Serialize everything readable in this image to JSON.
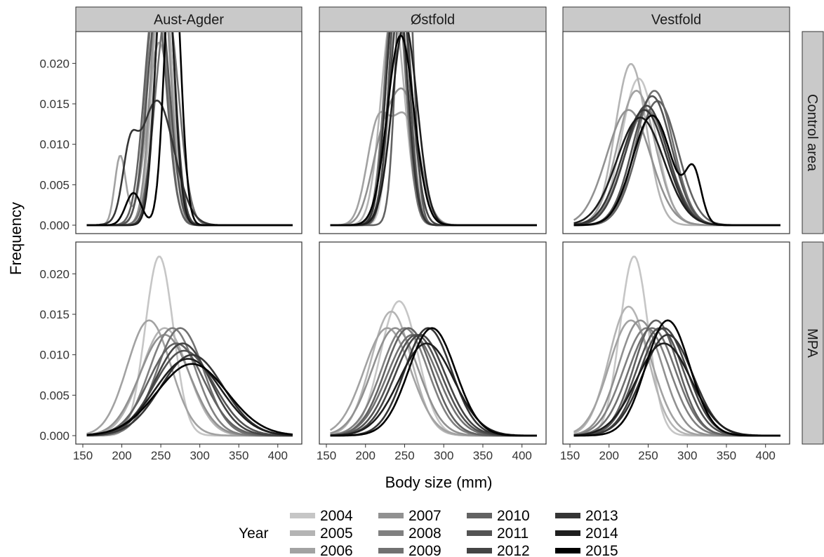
{
  "chart_data": {
    "type": "line",
    "xlabel": "Body size (mm)",
    "ylabel": "Frequency",
    "xlim": [
      150,
      420
    ],
    "ylim": [
      0,
      0.0235
    ],
    "x_ticks": [
      150,
      200,
      250,
      300,
      350,
      400
    ],
    "y_ticks": [
      0,
      0.005,
      0.01,
      0.015,
      0.02
    ],
    "y_tick_labels": [
      "0.000",
      "0.005",
      "0.010",
      "0.015",
      "0.020"
    ],
    "grid": false,
    "columns": [
      "Aust-Agder",
      "Østfold",
      "Vestfold"
    ],
    "rows": [
      "Control area",
      "MPA"
    ],
    "legend": {
      "title": "Year",
      "position": "bottom",
      "entries": [
        {
          "label": "2004",
          "color": "#c6c6c6"
        },
        {
          "label": "2005",
          "color": "#b4b4b4"
        },
        {
          "label": "2006",
          "color": "#a2a2a2"
        },
        {
          "label": "2007",
          "color": "#919191"
        },
        {
          "label": "2008",
          "color": "#808080"
        },
        {
          "label": "2009",
          "color": "#717171"
        },
        {
          "label": "2010",
          "color": "#626262"
        },
        {
          "label": "2011",
          "color": "#535353"
        },
        {
          "label": "2012",
          "color": "#444444"
        },
        {
          "label": "2013",
          "color": "#353535"
        },
        {
          "label": "2014",
          "color": "#1e1e1e"
        },
        {
          "label": "2015",
          "color": "#000000"
        }
      ]
    },
    "panels": [
      {
        "column": "Aust-Agder",
        "row": "Control area",
        "series": [
          {
            "name": "2004",
            "components": [
              [
                250,
                12,
                1.0
              ]
            ]
          },
          {
            "name": "2005",
            "components": [
              [
                252,
                12,
                1.0
              ]
            ]
          },
          {
            "name": "2006",
            "components": [
              [
                198,
                7,
                0.15
              ],
              [
                248,
                15,
                0.85
              ]
            ]
          },
          {
            "name": "2007",
            "components": [
              [
                250,
                12,
                1.0
              ]
            ]
          },
          {
            "name": "2008",
            "components": [
              [
                245,
                13,
                1.0
              ]
            ]
          },
          {
            "name": "2009",
            "components": [
              [
                258,
                15,
                1.0
              ]
            ]
          },
          {
            "name": "2010",
            "components": [
              [
                243,
                14,
                1.0
              ]
            ]
          },
          {
            "name": "2011",
            "components": [
              [
                247,
                14,
                1.0
              ]
            ]
          },
          {
            "name": "2012",
            "components": [
              [
                255,
                12,
                1.0
              ]
            ]
          },
          {
            "name": "2013",
            "components": [
              [
                210,
                9,
                0.15
              ],
              [
                245,
                22,
                0.85
              ]
            ]
          },
          {
            "name": "2014",
            "components": [
              [
                255,
                11,
                1.0
              ]
            ]
          },
          {
            "name": "2015",
            "components": [
              [
                265,
                10,
                0.9
              ],
              [
                215,
                10,
                0.1
              ]
            ]
          }
        ]
      },
      {
        "column": "Østfold",
        "row": "Control area",
        "series": [
          {
            "name": "2004",
            "components": [
              [
                245,
                12,
                1.0
              ]
            ]
          },
          {
            "name": "2005",
            "components": [
              [
                235,
                15,
                1.0
              ]
            ]
          },
          {
            "name": "2006",
            "components": [
              [
                215,
                14,
                0.4
              ],
              [
                250,
                18,
                0.6
              ]
            ]
          },
          {
            "name": "2007",
            "components": [
              [
                220,
                15,
                0.3
              ],
              [
                250,
                18,
                0.7
              ]
            ]
          },
          {
            "name": "2008",
            "components": [
              [
                240,
                13,
                1.0
              ]
            ]
          },
          {
            "name": "2009",
            "components": [
              [
                238,
                13,
                1.0
              ]
            ]
          },
          {
            "name": "2010",
            "components": [
              [
                250,
                10,
                1.0
              ]
            ]
          },
          {
            "name": "2011",
            "components": [
              [
                243,
                12,
                1.0
              ]
            ]
          },
          {
            "name": "2012",
            "components": [
              [
                245,
                14,
                1.0
              ]
            ]
          },
          {
            "name": "2013",
            "components": [
              [
                240,
                13,
                1.0
              ]
            ]
          },
          {
            "name": "2014",
            "components": [
              [
                250,
                16,
                1.0
              ]
            ]
          },
          {
            "name": "2015",
            "components": [
              [
                245,
                17,
                1.0
              ]
            ]
          }
        ]
      },
      {
        "column": "Vestfold",
        "row": "Control area",
        "series": [
          {
            "name": "2004",
            "components": [
              [
                238,
                22,
                1.0
              ]
            ]
          },
          {
            "name": "2005",
            "components": [
              [
                228,
                20,
                1.0
              ]
            ]
          },
          {
            "name": "2006",
            "components": [
              [
                235,
                24,
                1.0
              ]
            ]
          },
          {
            "name": "2007",
            "components": [
              [
                225,
                28,
                1.0
              ]
            ]
          },
          {
            "name": "2008",
            "components": [
              [
                248,
                28,
                1.0
              ]
            ]
          },
          {
            "name": "2009",
            "components": [
              [
                258,
                24,
                1.0
              ]
            ]
          },
          {
            "name": "2010",
            "components": [
              [
                262,
                26,
                1.0
              ]
            ]
          },
          {
            "name": "2011",
            "components": [
              [
                255,
                25,
                1.0
              ]
            ]
          },
          {
            "name": "2012",
            "components": [
              [
                248,
                27,
                1.0
              ]
            ]
          },
          {
            "name": "2013",
            "components": [
              [
                245,
                28,
                1.0
              ]
            ]
          },
          {
            "name": "2014",
            "components": [
              [
                240,
                30,
                1.0
              ]
            ]
          },
          {
            "name": "2015",
            "components": [
              [
                255,
                25,
                0.85
              ],
              [
                308,
                10,
                0.15
              ]
            ]
          }
        ]
      },
      {
        "column": "Aust-Agder",
        "row": "MPA",
        "series": [
          {
            "name": "2004",
            "components": [
              [
                248,
                18,
                1.0
              ]
            ]
          },
          {
            "name": "2005",
            "components": [
              [
                255,
                30,
                1.0
              ]
            ]
          },
          {
            "name": "2006",
            "components": [
              [
                235,
                28,
                1.0
              ]
            ]
          },
          {
            "name": "2007",
            "components": [
              [
                255,
                32,
                1.0
              ]
            ]
          },
          {
            "name": "2008",
            "components": [
              [
                265,
                30,
                1.0
              ]
            ]
          },
          {
            "name": "2009",
            "components": [
              [
                275,
                30,
                1.0
              ]
            ]
          },
          {
            "name": "2010",
            "components": [
              [
                270,
                35,
                1.0
              ]
            ]
          },
          {
            "name": "2011",
            "components": [
              [
                280,
                38,
                1.0
              ]
            ]
          },
          {
            "name": "2012",
            "components": [
              [
                278,
                35,
                1.0
              ]
            ]
          },
          {
            "name": "2013",
            "components": [
              [
                290,
                40,
                1.0
              ]
            ]
          },
          {
            "name": "2014",
            "components": [
              [
                285,
                42,
                1.0
              ]
            ]
          },
          {
            "name": "2015",
            "components": [
              [
                290,
                45,
                1.0
              ]
            ]
          }
        ]
      },
      {
        "column": "Østfold",
        "row": "MPA",
        "series": [
          {
            "name": "2004",
            "components": [
              [
                243,
                24,
                1.0
              ]
            ]
          },
          {
            "name": "2005",
            "components": [
              [
                233,
                26,
                1.0
              ]
            ]
          },
          {
            "name": "2006",
            "components": [
              [
                228,
                30,
                1.0
              ]
            ]
          },
          {
            "name": "2007",
            "components": [
              [
                238,
                30,
                1.0
              ]
            ]
          },
          {
            "name": "2008",
            "components": [
              [
                250,
                30,
                1.0
              ]
            ]
          },
          {
            "name": "2009",
            "components": [
              [
                260,
                32,
                1.0
              ]
            ]
          },
          {
            "name": "2010",
            "components": [
              [
                255,
                30,
                1.0
              ]
            ]
          },
          {
            "name": "2011",
            "components": [
              [
                265,
                32,
                1.0
              ]
            ]
          },
          {
            "name": "2012",
            "components": [
              [
                270,
                32,
                1.0
              ]
            ]
          },
          {
            "name": "2013",
            "components": [
              [
                280,
                30,
                1.0
              ]
            ]
          },
          {
            "name": "2014",
            "components": [
              [
                278,
                35,
                1.0
              ]
            ]
          },
          {
            "name": "2015",
            "components": [
              [
                285,
                30,
                1.0
              ]
            ]
          }
        ]
      },
      {
        "column": "Vestfold",
        "row": "MPA",
        "series": [
          {
            "name": "2004",
            "components": [
              [
                232,
                18,
                1.0
              ]
            ]
          },
          {
            "name": "2005",
            "components": [
              [
                225,
                25,
                1.0
              ]
            ]
          },
          {
            "name": "2006",
            "components": [
              [
                228,
                28,
                1.0
              ]
            ]
          },
          {
            "name": "2007",
            "components": [
              [
                240,
                28,
                1.0
              ]
            ]
          },
          {
            "name": "2008",
            "components": [
              [
                248,
                30,
                1.0
              ]
            ]
          },
          {
            "name": "2009",
            "components": [
              [
                255,
                30,
                1.0
              ]
            ]
          },
          {
            "name": "2010",
            "components": [
              [
                260,
                28,
                1.0
              ]
            ]
          },
          {
            "name": "2011",
            "components": [
              [
                265,
                30,
                1.0
              ]
            ]
          },
          {
            "name": "2012",
            "components": [
              [
                270,
                30,
                1.0
              ]
            ]
          },
          {
            "name": "2013",
            "components": [
              [
                275,
                32,
                1.0
              ]
            ]
          },
          {
            "name": "2014",
            "components": [
              [
                270,
                35,
                1.0
              ]
            ]
          },
          {
            "name": "2015",
            "components": [
              [
                275,
                28,
                1.0
              ]
            ]
          }
        ]
      }
    ]
  }
}
